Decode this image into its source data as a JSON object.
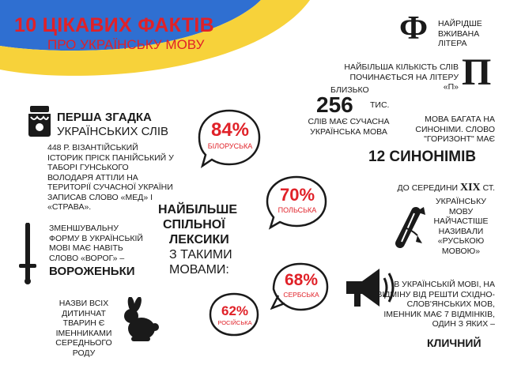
{
  "header": {
    "title": "10 ЦІКАВИХ ФАКТІВ",
    "subtitle": "ПРО УКРАЇНСЬКУ МОВУ"
  },
  "colors": {
    "accent": "#e02128",
    "flag_blue": "#2f6fd1",
    "flag_yellow": "#f7d23a",
    "ink": "#1a1a1a"
  },
  "fact_letter_f": {
    "glyph": "Ф",
    "text": "НАЙРІДШЕ ВЖИВАНА ЛІТЕРА"
  },
  "fact_letter_p": {
    "glyph": "П",
    "text": "НАЙБІЛЬША КІЛЬКІСТЬ СЛІВ ПОЧИНАЄТЬСЯ НА ЛІТЕРУ «П»"
  },
  "fact_words": {
    "prefix": "БЛИЗЬКО",
    "number": "256",
    "unit": "ТИС.",
    "text": "СЛІВ МАЄ СУЧАСНА УКРАЇНСЬКА МОВА"
  },
  "fact_synonyms": {
    "text": "МОВА БАГАТА НА СИНОНІМИ. СЛОВО \"ГОРИЗОНТ\" МАЄ",
    "highlight": "12 СИНОНІМІВ"
  },
  "fact_first_mention": {
    "title_line1": "ПЕРША ЗГАДКА",
    "title_line2": "УКРАЇНСЬКИХ СЛІВ",
    "text": "448 Р. ВІЗАНТІЙСЬКИЙ ІСТОРИК ПРІСК ПАНІЙСЬКИЙ У ТАБОРІ ГУНСЬКОГО ВОЛОДАРЯ АТТІЛИ НА ТЕРИТОРІЇ СУЧАСНОЇ УКРАЇНИ ЗАПИСАВ СЛОВО «МЕД» І «СТРАВА»."
  },
  "lexicon": {
    "line1": "НАЙБІЛЬШЕ",
    "line2": "СПІЛЬНОЇ",
    "line3": "ЛЕКСИКИ",
    "line4": "З ТАКИМИ",
    "line5": "МОВАМИ:"
  },
  "bubbles": [
    {
      "value": "84%",
      "label": "БІЛОРУСЬКА"
    },
    {
      "value": "70%",
      "label": "ПОЛЬСЬКА"
    },
    {
      "value": "68%",
      "label": "СЕРБСЬКА"
    },
    {
      "value": "62%",
      "label": "РОСІЙСЬКА"
    }
  ],
  "fact_diminutive": {
    "text": "ЗМЕНШУВАЛЬНУ ФОРМУ В УКРАЇНСЬКІЙ МОВІ МАЄ НАВІТЬ СЛОВО «ВОРОГ» –",
    "highlight": "ВОРОЖЕНЬКИ"
  },
  "fact_animals": {
    "text": "НАЗВИ ВСІХ ДИТИНЧАТ ТВАРИН Є ІМЕННИКАМИ СЕРЕДНЬОГО РОДУ"
  },
  "fact_name": {
    "line1_prefix": "ДО СЕРЕДИНИ",
    "century": "XIX",
    "line1_suffix": "СТ.",
    "text": "УКРАЇНСЬКУ МОВУ НАЙЧАСТІШЕ НАЗИВАЛИ «РУСЬКОЮ МОВОЮ»"
  },
  "fact_cases": {
    "text": "В УКРАЇНСЬКІЙ МОВІ, НА ВІДМІНУ ВІД РЕШТИ СХІДНО-СЛОВ'ЯНСЬКИХ МОВ, ІМЕННИК МАЄ 7 ВІДМІНКІВ, ОДИН З ЯКИХ –",
    "highlight": "КЛИЧНИЙ"
  },
  "icons": [
    "flag-wave-icon",
    "honey-jar-icon",
    "sword-icon",
    "rabbit-icon",
    "scroll-icon",
    "megaphone-icon"
  ]
}
